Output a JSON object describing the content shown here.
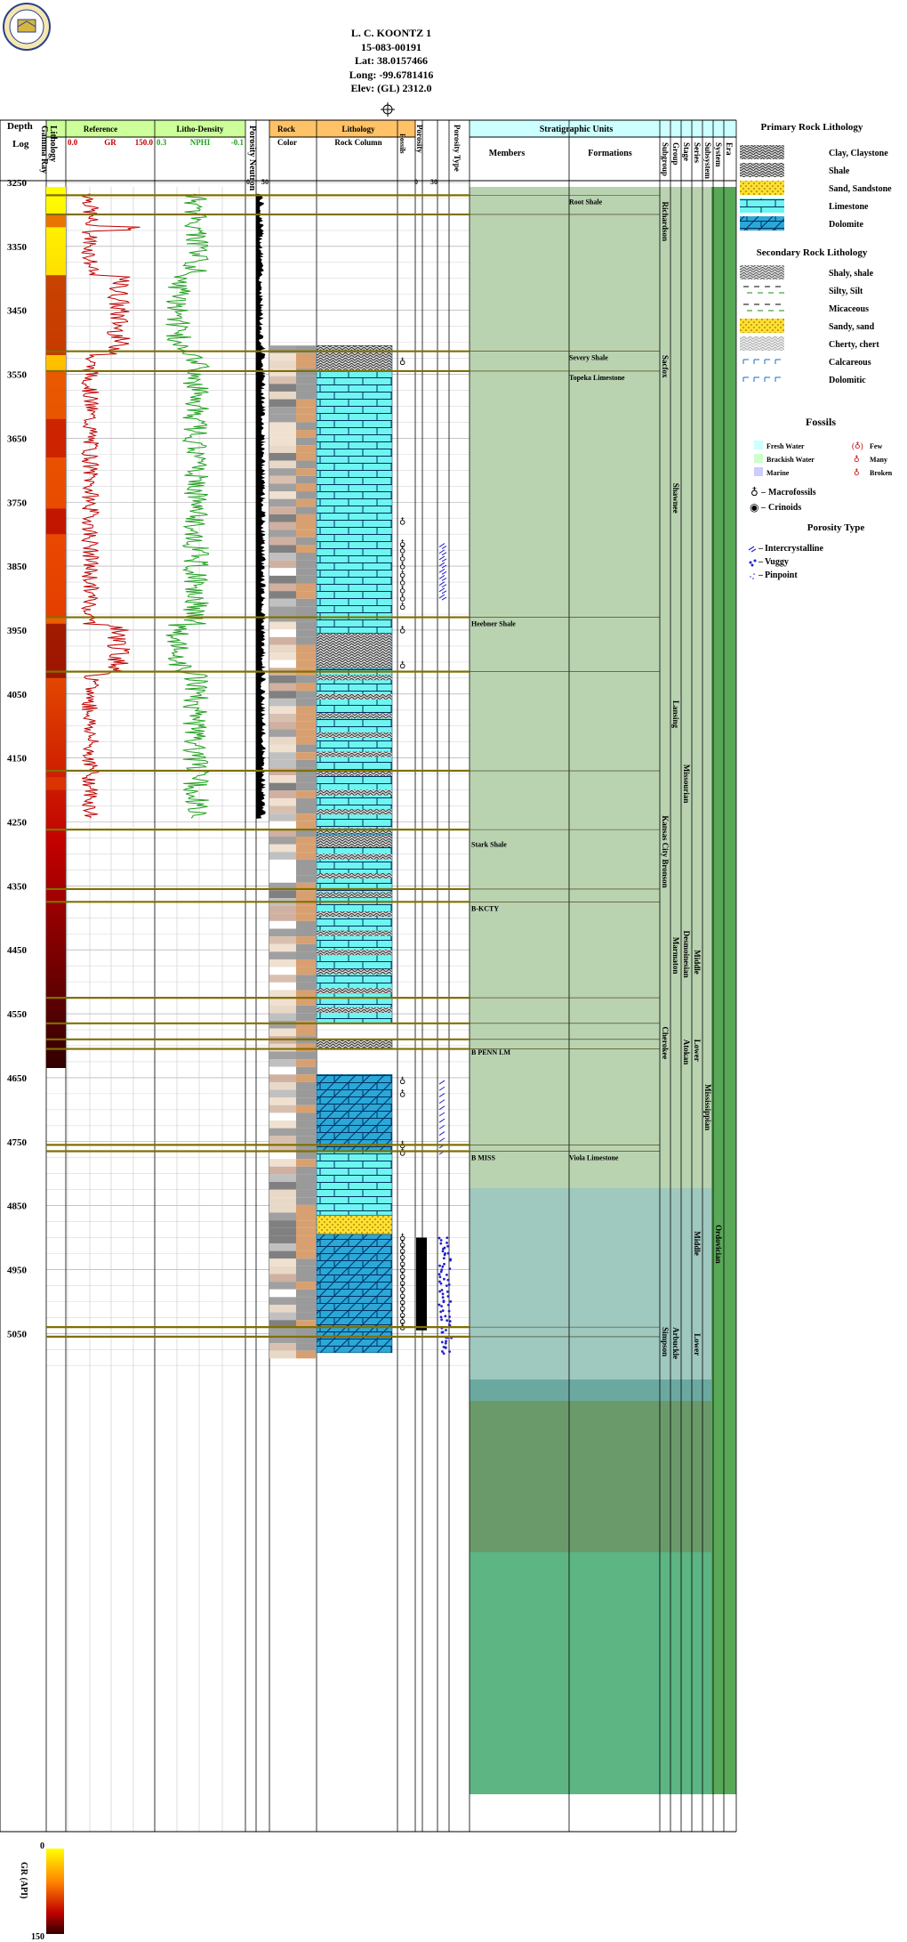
{
  "header": {
    "well_name": "L. C. KOONTZ 1",
    "api": "15-083-00191",
    "lat": "Lat: 38.0157466",
    "long": "Long: -99.6781416",
    "elev": "Elev: (GL) 2312.0"
  },
  "columns": {
    "depth": "Depth",
    "log": "Log",
    "lithology": "Lithology",
    "gamma_ray": "Gamma Ray",
    "reference": "Reference",
    "gr": "GR",
    "gr_min": "0.0",
    "gr_max": "150.0",
    "litho_density": "Litho-Density",
    "nphi": "NPHI",
    "nphi_min": "0.3",
    "nphi_max": "-0.1",
    "porosity_neutron": "Porosity Neutron",
    "neutron_min": "0",
    "neutron_max": "50",
    "rock": "Rock",
    "color": "Color",
    "lithology_main": "Lithology",
    "rock_column": "Rock Column",
    "fossils": "Fossils",
    "porosity": "Porosity",
    "porosity_min": "0",
    "porosity_max": "30",
    "porosity_type": "Porosity Type",
    "strat_units": "Stratigraphic Units",
    "members": "Members",
    "formations": "Formations",
    "subgroup": "Subgroup",
    "group": "Group",
    "stage": "Stage",
    "series": "Series",
    "subsystem": "Subsystem",
    "system": "System",
    "era": "Era"
  },
  "depth_ticks": [
    "3250",
    "3350",
    "3450",
    "3550",
    "3650",
    "3750",
    "3850",
    "3950",
    "4050",
    "4150",
    "4250",
    "4350",
    "4450",
    "4550",
    "4650",
    "4750",
    "4850",
    "4950",
    "5050"
  ],
  "tops": [
    {
      "label": "Root Shale",
      "col": "formation",
      "depth": 3270
    },
    {
      "label": "Severy Shale",
      "col": "formation",
      "depth": 3514
    },
    {
      "label": "Topeka Limestone",
      "col": "formation",
      "depth": 3545
    },
    {
      "label": "Heebner Shale",
      "col": "member",
      "depth": 3930
    },
    {
      "label": "Stark Shale",
      "col": "member",
      "depth": 4275
    },
    {
      "label": "B-KCTY",
      "col": "member",
      "depth": 4375
    },
    {
      "label": "B PENN LM",
      "col": "member",
      "depth": 4600
    },
    {
      "label": "B MISS",
      "col": "member",
      "depth": 4765
    },
    {
      "label": "Viola Limestone",
      "col": "formation",
      "depth": 4765
    }
  ],
  "subgroups": [
    "Richardson",
    "Sacfox",
    "Shawnee",
    "Lansing",
    "Kansas City Bronson",
    "Marmaton",
    "Cherokee",
    "Simpson",
    "Arbuckle"
  ],
  "groups": [],
  "stages": [
    "Missourian",
    "Desmoinesian",
    "Atokan"
  ],
  "series": [
    "Middle",
    "Lower",
    "Middle",
    "Lower"
  ],
  "systems": [
    "Mississippian",
    "Ordovician"
  ],
  "legend": {
    "primary_title": "Primary Rock Lithology",
    "primary": [
      "Clay, Claystone",
      "Shale",
      "Sand, Sandstone",
      "Limestone",
      "Dolomite"
    ],
    "secondary_title": "Secondary Rock Lithology",
    "secondary": [
      "Shaly, shale",
      "Silty, Silt",
      "Micaceous",
      "Sandy, sand",
      "Cherty, chert",
      "Calcareous",
      "Dolomitic"
    ],
    "fossils_title": "Fossils",
    "fossil_env": [
      "Fresh Water",
      "Brackish Water",
      "Marine"
    ],
    "fossil_abund": [
      "Few",
      "Many",
      "Broken"
    ],
    "fossil_types": [
      "Macrofossils",
      "Crinoids"
    ],
    "porosity_title": "Porosity Type",
    "porosity_types": [
      "Intercrystalline",
      "Vuggy",
      "Pinpoint"
    ]
  },
  "gr_scale": {
    "top": "0",
    "label": "GR (API)",
    "bottom": "150"
  },
  "colors": {
    "strat_green": "#b9d3b1",
    "strat_teal": "#9fc8bf",
    "strat_dark": "#6a9a6a",
    "strat_bright": "#5cb583",
    "limestone": "#6ef5f0",
    "dolomite": "#2aa8d8",
    "sand": "#ffe030",
    "gr_curve": "#c00000",
    "nphi_curve": "#20a020"
  }
}
